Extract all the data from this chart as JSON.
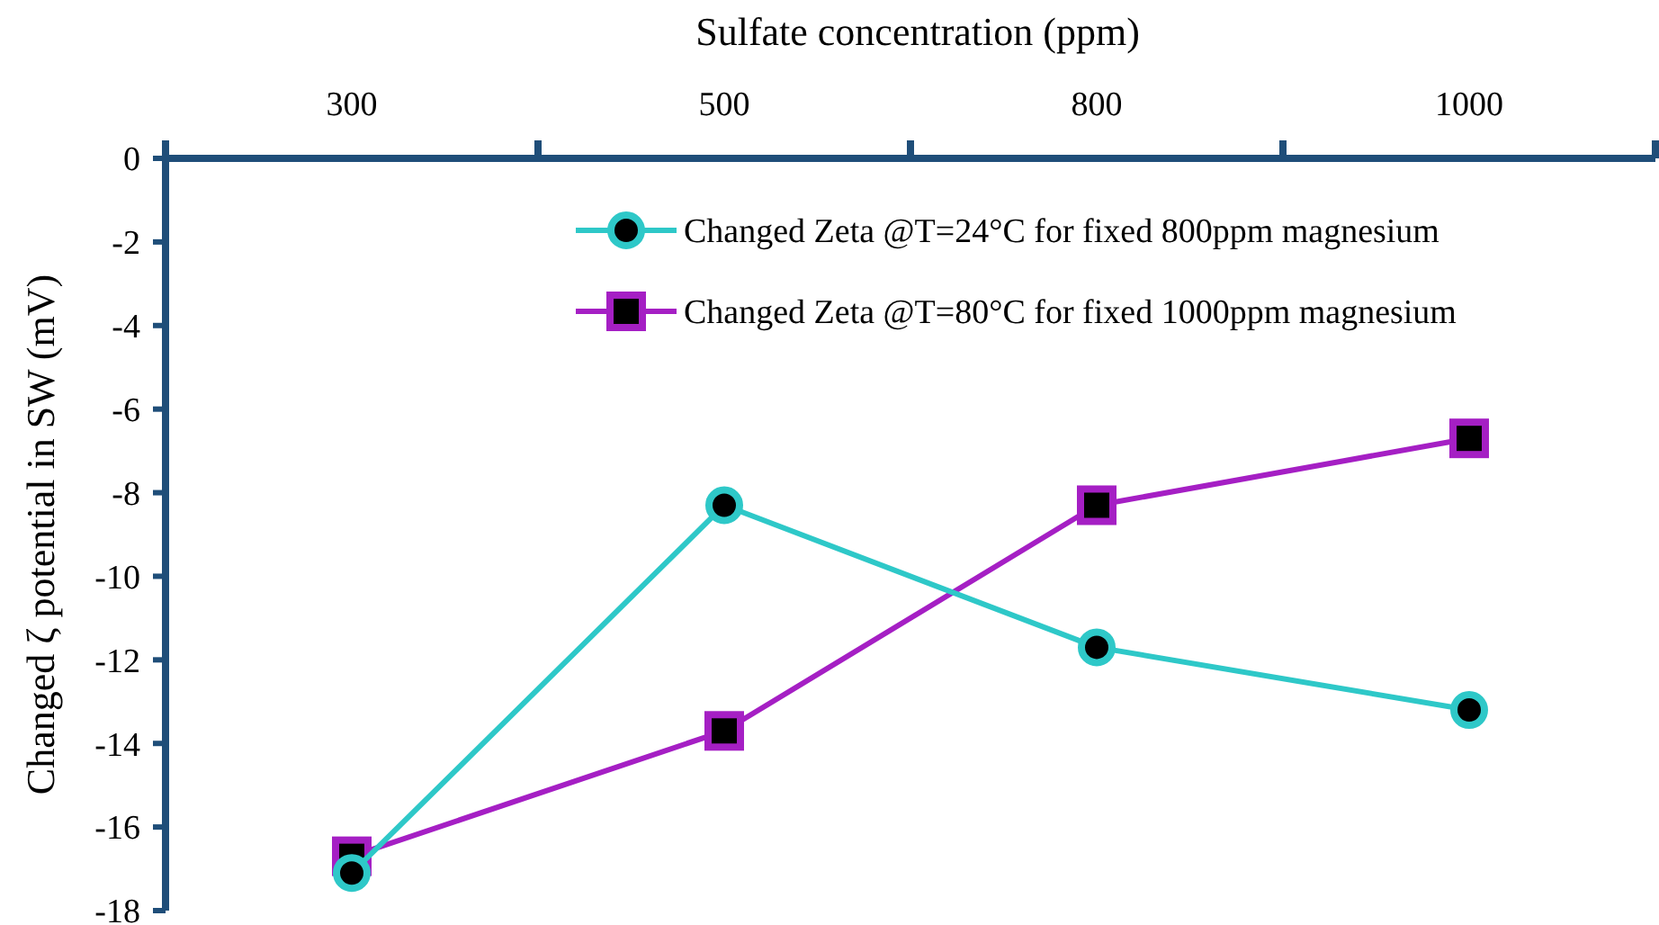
{
  "chart_data": {
    "type": "line",
    "xlabel": "Sulfate concentration (ppm)",
    "ylabel": "Changed ζ potential in SW (mV)",
    "categories": [
      "300",
      "500",
      "800",
      "1000"
    ],
    "series": [
      {
        "name": "Changed Zeta @T=24°C for fixed 800ppm magnesium",
        "color": "#2ec8c8",
        "marker": "circle",
        "values": [
          -17.1,
          -8.3,
          -11.7,
          -13.2
        ]
      },
      {
        "name": "Changed Zeta @T=80°C for fixed 1000ppm magnesium",
        "color": "#a51fc4",
        "marker": "square",
        "values": [
          -16.7,
          -13.7,
          -8.3,
          -6.7
        ]
      }
    ],
    "ylim": [
      -18,
      0
    ],
    "yticks": [
      0,
      -2,
      -4,
      -6,
      -8,
      -10,
      -12,
      -14,
      -16,
      -18
    ],
    "grid": false,
    "legend": "top right"
  }
}
